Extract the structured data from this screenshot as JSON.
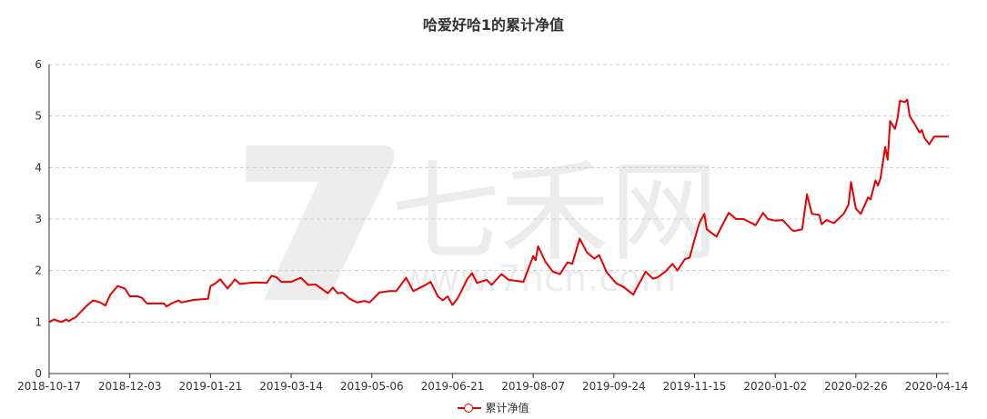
{
  "chart_data": {
    "type": "line",
    "title": "哈爱好哈1的累计净值",
    "xlabel": "",
    "ylabel": "",
    "ylim": [
      0,
      6
    ],
    "yticks": [
      0,
      1,
      2,
      3,
      4,
      5,
      6
    ],
    "grid": true,
    "legend_position": "bottom",
    "x_tick_labels": [
      "2018-10-17",
      "2018-12-03",
      "2019-01-21",
      "2019-03-14",
      "2019-05-06",
      "2019-06-21",
      "2019-08-07",
      "2019-09-24",
      "2019-11-15",
      "2020-01-02",
      "2020-02-26",
      "2020-04-14"
    ],
    "x_tick_index_step": 33,
    "x_index_max": 368,
    "series": [
      {
        "name": "累计净值",
        "color": "#e60000",
        "points": [
          [
            0,
            1.0
          ],
          [
            2,
            1.05
          ],
          [
            5,
            1.0
          ],
          [
            7,
            1.05
          ],
          [
            8,
            1.02
          ],
          [
            11,
            1.1
          ],
          [
            13,
            1.2
          ],
          [
            15,
            1.3
          ],
          [
            18,
            1.42
          ],
          [
            21,
            1.38
          ],
          [
            23,
            1.32
          ],
          [
            25,
            1.53
          ],
          [
            28,
            1.7
          ],
          [
            31,
            1.65
          ],
          [
            33,
            1.5
          ],
          [
            36,
            1.5
          ],
          [
            38,
            1.47
          ],
          [
            40,
            1.36
          ],
          [
            47,
            1.36
          ],
          [
            48,
            1.3
          ],
          [
            50,
            1.36
          ],
          [
            53,
            1.42
          ],
          [
            54,
            1.38
          ],
          [
            59,
            1.43
          ],
          [
            62,
            1.44
          ],
          [
            65,
            1.45
          ],
          [
            66,
            1.7
          ],
          [
            68,
            1.75
          ],
          [
            70,
            1.83
          ],
          [
            73,
            1.65
          ],
          [
            76,
            1.83
          ],
          [
            78,
            1.74
          ],
          [
            82,
            1.76
          ],
          [
            85,
            1.77
          ],
          [
            89,
            1.76
          ],
          [
            91,
            1.9
          ],
          [
            93,
            1.87
          ],
          [
            95,
            1.78
          ],
          [
            99,
            1.78
          ],
          [
            103,
            1.86
          ],
          [
            106,
            1.72
          ],
          [
            109,
            1.73
          ],
          [
            114,
            1.56
          ],
          [
            116,
            1.67
          ],
          [
            118,
            1.56
          ],
          [
            120,
            1.57
          ],
          [
            123,
            1.45
          ],
          [
            126,
            1.38
          ],
          [
            129,
            1.41
          ],
          [
            131,
            1.38
          ],
          [
            133,
            1.47
          ],
          [
            135,
            1.57
          ],
          [
            139,
            1.6
          ],
          [
            142,
            1.6
          ],
          [
            146,
            1.86
          ],
          [
            149,
            1.6
          ],
          [
            154,
            1.72
          ],
          [
            156,
            1.78
          ],
          [
            159,
            1.5
          ],
          [
            161,
            1.42
          ],
          [
            163,
            1.5
          ],
          [
            165,
            1.33
          ],
          [
            167,
            1.45
          ],
          [
            171,
            1.83
          ],
          [
            173,
            1.95
          ],
          [
            175,
            1.76
          ],
          [
            179,
            1.82
          ],
          [
            181,
            1.72
          ],
          [
            185,
            1.93
          ],
          [
            188,
            1.82
          ],
          [
            194,
            1.78
          ],
          [
            198,
            2.28
          ],
          [
            199,
            2.2
          ],
          [
            200,
            2.47
          ],
          [
            203,
            2.17
          ],
          [
            206,
            1.98
          ],
          [
            209,
            1.93
          ],
          [
            212,
            2.16
          ],
          [
            214,
            2.13
          ],
          [
            217,
            2.62
          ],
          [
            220,
            2.35
          ],
          [
            223,
            2.23
          ],
          [
            225,
            2.3
          ],
          [
            228,
            1.97
          ],
          [
            232,
            1.75
          ],
          [
            235,
            1.68
          ],
          [
            239,
            1.53
          ],
          [
            240,
            1.63
          ],
          [
            244,
            1.98
          ],
          [
            247,
            1.84
          ],
          [
            249,
            1.87
          ],
          [
            252,
            1.98
          ],
          [
            255,
            2.13
          ],
          [
            257,
            2.0
          ],
          [
            260,
            2.22
          ],
          [
            262,
            2.25
          ],
          [
            264,
            2.6
          ],
          [
            266,
            2.93
          ],
          [
            268,
            3.1
          ],
          [
            269,
            2.8
          ],
          [
            273,
            2.66
          ],
          [
            275,
            2.85
          ],
          [
            278,
            3.12
          ],
          [
            281,
            3.0
          ],
          [
            284,
            3.0
          ],
          [
            289,
            2.88
          ],
          [
            292,
            3.12
          ],
          [
            294,
            3.0
          ],
          [
            297,
            2.97
          ],
          [
            300,
            2.98
          ],
          [
            304,
            2.78
          ],
          [
            305,
            2.77
          ],
          [
            308,
            2.8
          ],
          [
            310,
            3.48
          ],
          [
            312,
            3.1
          ],
          [
            315,
            3.08
          ],
          [
            316,
            2.9
          ],
          [
            318,
            2.98
          ],
          [
            321,
            2.92
          ],
          [
            325,
            3.1
          ],
          [
            327,
            3.28
          ],
          [
            328,
            3.72
          ],
          [
            330,
            3.2
          ],
          [
            332,
            3.1
          ],
          [
            335,
            3.42
          ],
          [
            336,
            3.38
          ],
          [
            338,
            3.75
          ],
          [
            339,
            3.65
          ],
          [
            340,
            3.78
          ],
          [
            342,
            4.4
          ],
          [
            343,
            4.15
          ],
          [
            344,
            4.9
          ],
          [
            346,
            4.75
          ],
          [
            347,
            4.95
          ],
          [
            348,
            5.3
          ],
          [
            350,
            5.27
          ],
          [
            351,
            5.32
          ],
          [
            352,
            5.0
          ],
          [
            354,
            4.85
          ],
          [
            356,
            4.68
          ],
          [
            357,
            4.73
          ],
          [
            358,
            4.58
          ],
          [
            360,
            4.45
          ],
          [
            362,
            4.6
          ],
          [
            368,
            4.6
          ]
        ]
      }
    ]
  },
  "watermark": {
    "text": "七禾网",
    "url": "www.7hcn.com"
  }
}
